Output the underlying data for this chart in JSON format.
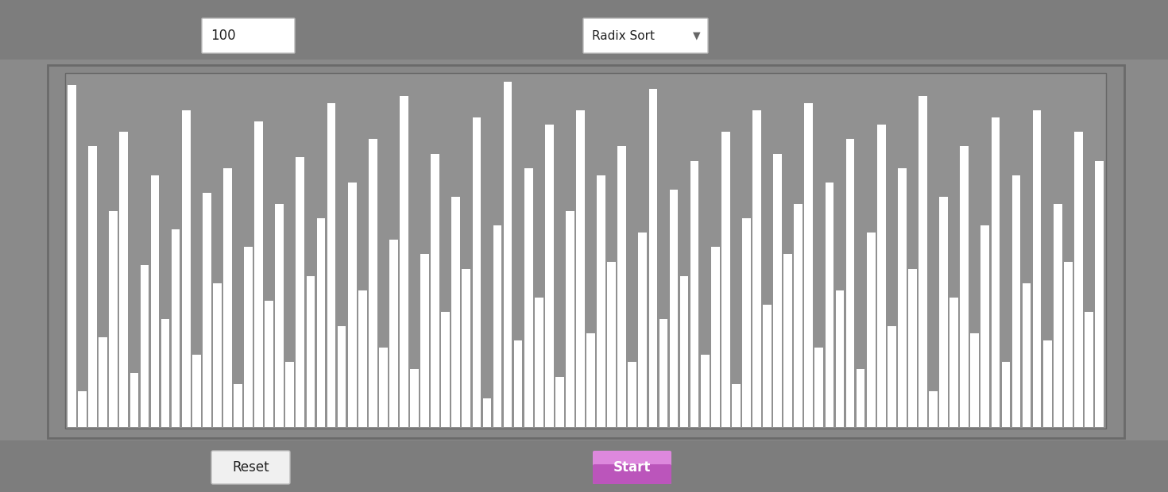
{
  "n_bars": 100,
  "bar_values": [
    95,
    10,
    78,
    25,
    60,
    82,
    15,
    45,
    70,
    30,
    55,
    88,
    20,
    65,
    40,
    72,
    12,
    50,
    85,
    35,
    62,
    18,
    75,
    42,
    58,
    90,
    28,
    68,
    38,
    80,
    22,
    52,
    92,
    16,
    48,
    76,
    32,
    64,
    44,
    86,
    8,
    56,
    96,
    24,
    72,
    36,
    84,
    14,
    60,
    88,
    26,
    70,
    46,
    78,
    18,
    54,
    94,
    30,
    66,
    42,
    74,
    20,
    50,
    82,
    12,
    58,
    88,
    34,
    76,
    48,
    62,
    90,
    22,
    68,
    38,
    80,
    16,
    54,
    84,
    28,
    72,
    44,
    92,
    10,
    64,
    36,
    78,
    26,
    56,
    86,
    18,
    70,
    40,
    88,
    24,
    62,
    46,
    82,
    32,
    74
  ],
  "bg_outer": "#8a8a8a",
  "bg_top_strip": "#7a7a7a",
  "bg_panel_outer": "#888888",
  "bg_panel_inner": "#868686",
  "bg_chart": "#919191",
  "bar_color": "#ffffff",
  "bar_edge_color": "#868686",
  "button_reset_color": "#f0f0f0",
  "button_start_color": "#bb55bb",
  "button_start_color2": "#dd88dd",
  "input_box_color": "#ffffff",
  "dropdown_color": "#ffffff",
  "text_color": "#222222",
  "input_text": "100",
  "dropdown_text": "Radix Sort",
  "reset_text": "Reset",
  "start_text": "Start"
}
